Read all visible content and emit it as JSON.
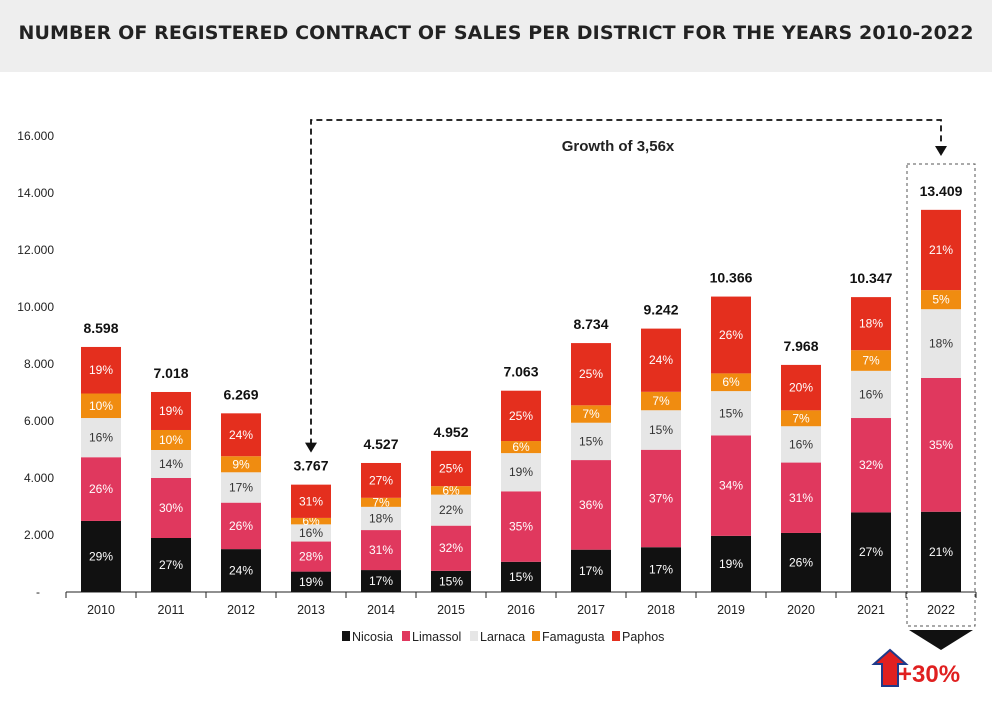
{
  "header": {
    "title": "NUMBER OF REGISTERED CONTRACT OF SALES PER DISTRICT FOR THE YEARS 2010-2022"
  },
  "colors": {
    "Nicosia": "#111111",
    "Limassol": "#e0385e",
    "Larnaca": "#e6e6e6",
    "Famagusta": "#f08c10",
    "Paphos": "#e42f1e"
  },
  "chart_data": {
    "type": "bar",
    "stacked": true,
    "categories": [
      "2010",
      "2011",
      "2012",
      "2013",
      "2014",
      "2015",
      "2016",
      "2017",
      "2018",
      "2019",
      "2020",
      "2021",
      "2022"
    ],
    "totals": [
      8598,
      7018,
      6269,
      3767,
      4527,
      4952,
      7063,
      8734,
      9242,
      10366,
      7968,
      10347,
      13409
    ],
    "total_labels": [
      "8.598",
      "7.018",
      "6.269",
      "3.767",
      "4.527",
      "4.952",
      "7.063",
      "8.734",
      "9.242",
      "10.366",
      "7.968",
      "10.347",
      "13.409"
    ],
    "series": [
      {
        "name": "Nicosia",
        "percents": [
          29,
          27,
          24,
          19,
          17,
          15,
          15,
          17,
          17,
          19,
          26,
          27,
          21
        ]
      },
      {
        "name": "Limassol",
        "percents": [
          26,
          30,
          26,
          28,
          31,
          32,
          35,
          36,
          37,
          34,
          31,
          32,
          35
        ]
      },
      {
        "name": "Larnaca",
        "percents": [
          16,
          14,
          17,
          16,
          18,
          22,
          19,
          15,
          15,
          15,
          16,
          16,
          18
        ]
      },
      {
        "name": "Famagusta",
        "percents": [
          10,
          10,
          9,
          6,
          7,
          6,
          6,
          7,
          7,
          6,
          7,
          7,
          5
        ]
      },
      {
        "name": "Paphos",
        "percents": [
          19,
          19,
          24,
          31,
          27,
          25,
          25,
          25,
          24,
          26,
          20,
          18,
          21
        ]
      }
    ],
    "ylim": [
      0,
      16000
    ],
    "yticks": [
      0,
      2000,
      4000,
      6000,
      8000,
      10000,
      12000,
      14000,
      16000
    ],
    "ytick_labels": [
      "-",
      "2.000",
      "4.000",
      "6.000",
      "8.000",
      "10.000",
      "12.000",
      "14.000",
      "16.000"
    ],
    "legend_position": "bottom",
    "annotations": {
      "growth": "Growth of 3,56x",
      "change": "+30%"
    }
  }
}
